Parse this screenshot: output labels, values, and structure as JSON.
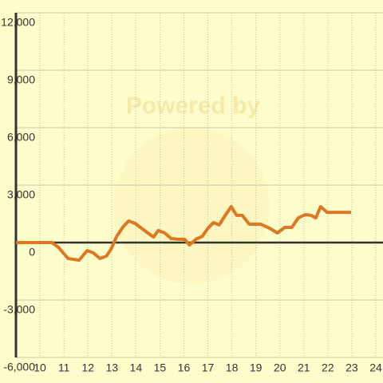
{
  "chart_data": {
    "type": "line",
    "watermark": "Powered by",
    "x": [
      9,
      10.5,
      10.77,
      11.17,
      11.63,
      11.97,
      12.23,
      12.5,
      12.77,
      12.97,
      13.2,
      13.47,
      13.7,
      13.97,
      14.23,
      14.5,
      14.73,
      14.93,
      15.2,
      15.47,
      15.8,
      16.03,
      16.23,
      16.5,
      16.77,
      17,
      17.23,
      17.47,
      17.7,
      17.97,
      18.2,
      18.43,
      18.73,
      19.2,
      19.57,
      19.9,
      20.2,
      20.5,
      20.77,
      21.07,
      21.3,
      21.5,
      21.7,
      21.97,
      22.97
    ],
    "series": [
      {
        "color": "#dd7722",
        "values": [
          0,
          0,
          -250,
          -830,
          -920,
          -420,
          -540,
          -830,
          -710,
          -330,
          330,
          830,
          1130,
          1000,
          750,
          500,
          290,
          630,
          500,
          210,
          170,
          170,
          -125,
          170,
          330,
          750,
          1040,
          920,
          1375,
          1875,
          1420,
          1420,
          960,
          960,
          750,
          500,
          790,
          790,
          1290,
          1460,
          1420,
          1290,
          1875,
          1580,
          1580
        ]
      }
    ],
    "xlim": [
      9,
      24.3
    ],
    "xticks": [
      10,
      11,
      12,
      13,
      14,
      15,
      16,
      17,
      18,
      19,
      20,
      21,
      22,
      23,
      24
    ],
    "ylim": [
      -6000,
      12000
    ],
    "yticks": [
      {
        "value": -6000,
        "label": "-6,000"
      },
      {
        "value": -3000,
        "label": "-3,000"
      },
      0,
      {
        "value": 3000,
        "label": "3,000"
      },
      {
        "value": 6000,
        "label": "6,000"
      },
      {
        "value": 9000,
        "label": "9,000"
      },
      {
        "value": 12000,
        "label": "12,000"
      }
    ],
    "grid": true
  }
}
